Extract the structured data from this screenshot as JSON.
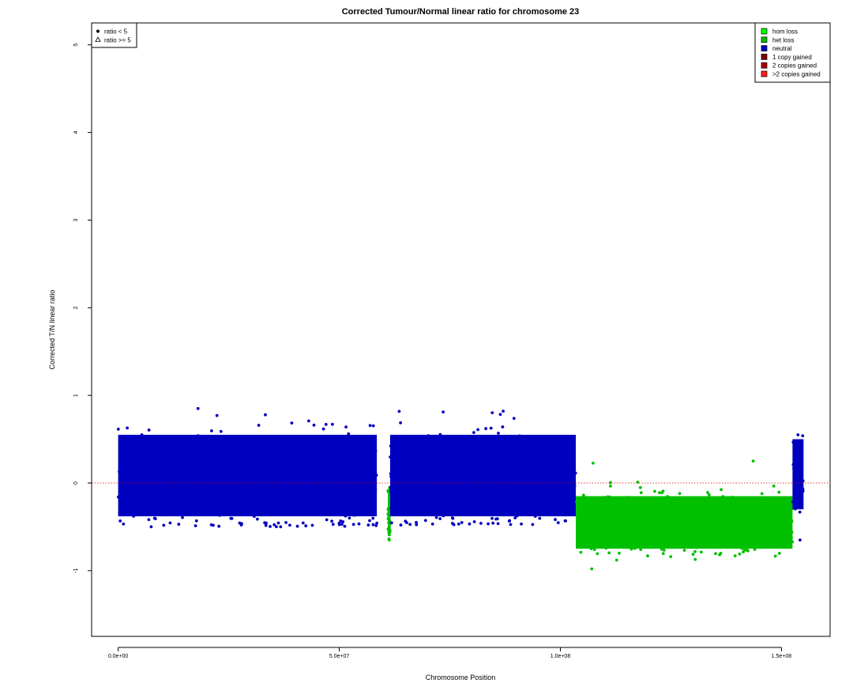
{
  "chart_data": {
    "type": "scatter",
    "title": "Corrected Tumour/Normal linear ratio for chromosome  23",
    "xlabel": "Chromosome Position",
    "ylabel": "Corrected T/N linear ratio",
    "xlim": [
      -6000000,
      161000000
    ],
    "ylim": [
      -1.75,
      5.25
    ],
    "x_ticks": [
      0,
      50000000,
      100000000,
      150000000
    ],
    "x_tick_labels": [
      "0.0e+00",
      "5.0e+07",
      "1.0e+08",
      "1.5e+08"
    ],
    "y_ticks": [
      -1,
      0,
      1,
      2,
      3,
      4,
      5
    ],
    "y_tick_labels": [
      "-1",
      "0",
      "1",
      "2",
      "3",
      "4",
      "5"
    ],
    "reference_line": 0,
    "grid": false,
    "colors": {
      "hom loss": "#00ff00",
      "het loss": "#00c000",
      "neutral": "#0000c0",
      "1 copy gained": "#800000",
      "2 copies gained": "#b00000",
      ">2 copies gained": "#ff2020"
    },
    "segments": [
      {
        "state": "neutral",
        "x_range": [
          0,
          58500000
        ],
        "mean": 0.03,
        "low": -0.38,
        "high": 0.55,
        "max_outlier": 0.85,
        "min_outlier": -0.5
      },
      {
        "state": "het loss",
        "x_range": [
          61000000,
          61500000
        ],
        "mean": -0.38,
        "low": -0.6,
        "high": -0.1,
        "max_outlier": -0.05,
        "min_outlier": -0.65
      },
      {
        "state": "neutral",
        "x_range": [
          61500000,
          103500000
        ],
        "mean": 0.03,
        "low": -0.38,
        "high": 0.55,
        "max_outlier": 0.82,
        "min_outlier": -0.48
      },
      {
        "state": "het loss",
        "x_range": [
          103500000,
          152500000
        ],
        "mean": -0.45,
        "low": -0.75,
        "high": -0.15,
        "max_outlier": 0.25,
        "min_outlier": -0.98
      },
      {
        "state": "neutral",
        "x_range": [
          152500000,
          155000000
        ],
        "mean": 0.05,
        "low": -0.3,
        "high": 0.5,
        "max_outlier": 0.55,
        "min_outlier": -0.65
      }
    ],
    "legend_right": {
      "placement": "top-right",
      "entries": [
        {
          "label": "hom loss",
          "color": "#00ff00"
        },
        {
          "label": "het loss",
          "color": "#00c000"
        },
        {
          "label": "neutral",
          "color": "#0000c0"
        },
        {
          "label": "1 copy gained",
          "color": "#800000"
        },
        {
          "label": "2 copies gained",
          "color": "#b00000"
        },
        {
          "label": ">2 copies gained",
          "color": "#ff2020"
        }
      ]
    },
    "legend_left": {
      "placement": "top-left",
      "entries": [
        {
          "label": "ratio < 5",
          "symbol": "filled-circle"
        },
        {
          "label": "ratio >= 5",
          "symbol": "open-triangle"
        }
      ]
    }
  }
}
